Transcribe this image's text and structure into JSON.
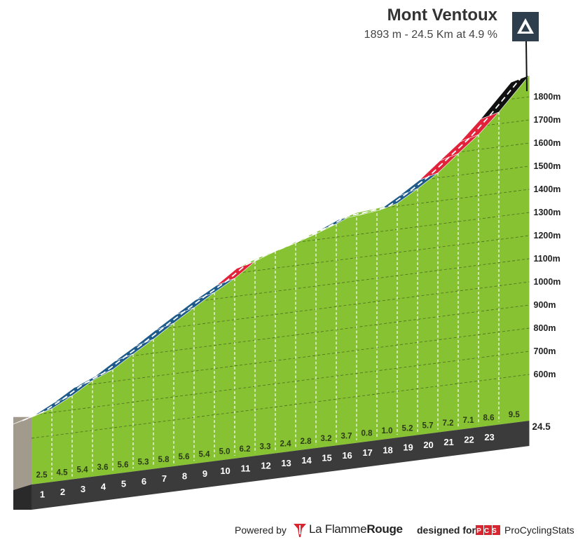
{
  "header": {
    "title": "Mont Ventoux",
    "subtitle": "1893 m - 24.5 Km at 4.9 %"
  },
  "footer": {
    "powered_by": "Powered by",
    "brand_prefix": "La Flamme",
    "brand_suffix": "Rouge",
    "designed_for": "designed for",
    "pcs_logo_text": "PCS",
    "pcs_name": "ProCyclingStats"
  },
  "colors": {
    "slope_easy": "#87c540",
    "slope_medium": "#1e5b8a",
    "slope_hard": "#e2213a",
    "slope_extreme": "#111111",
    "front_face": "#86c232",
    "base_band": "#3b3b3b",
    "side_wall": "#a39a8e",
    "summit_badge": "#2f3e4d",
    "brand_red": "#d9252f"
  },
  "chart_data": {
    "type": "area",
    "title": "Mont Ventoux",
    "subtitle": "1893 m - 24.5 Km at 4.9 %",
    "xlabel": "",
    "ylabel": "",
    "x_unit": "km",
    "y_unit": "m",
    "km_ticks": [
      "1",
      "2",
      "3",
      "4",
      "5",
      "6",
      "7",
      "8",
      "9",
      "10",
      "11",
      "12",
      "13",
      "14",
      "15",
      "16",
      "17",
      "18",
      "19",
      "20",
      "21",
      "22",
      "23"
    ],
    "km_end_label": "24.5",
    "gradients": [
      2.5,
      4.5,
      5.4,
      3.6,
      5.6,
      5.3,
      5.8,
      5.6,
      5.4,
      5.0,
      6.2,
      3.3,
      2.4,
      2.8,
      3.2,
      3.7,
      0.8,
      1.0,
      5.2,
      5.7,
      7.2,
      7.1,
      8.6,
      9.5
    ],
    "gradient_labels": [
      "2.5",
      "4.5",
      "5.4",
      "3.6",
      "5.6",
      "5.3",
      "5.8",
      "5.6",
      "5.4",
      "5.0",
      "6.2",
      "3.3",
      "2.4",
      "2.8",
      "3.2",
      "3.7",
      "0.8",
      "1.0",
      "5.2",
      "5.7",
      "7.2",
      "7.1",
      "8.6",
      "9.5"
    ],
    "segment_lengths_km": [
      1,
      1,
      1,
      1,
      1,
      1,
      1,
      1,
      1,
      1,
      1,
      1,
      1,
      1,
      1,
      1,
      1,
      1,
      1,
      1,
      1,
      1,
      1,
      1.5
    ],
    "summit_altitude_m": 1893,
    "y_ticks": [
      600,
      700,
      800,
      900,
      1000,
      1100,
      1200,
      1300,
      1400,
      1500,
      1600,
      1700,
      1800
    ],
    "y_tick_labels": [
      "600m",
      "700m",
      "800m",
      "900m",
      "1000m",
      "1100m",
      "1200m",
      "1300m",
      "1400m",
      "1500m",
      "1600m",
      "1700m",
      "1800m"
    ],
    "ylim": [
      550,
      1900
    ],
    "xlim": [
      0,
      24.5
    ],
    "grid": true,
    "legend": "none"
  }
}
